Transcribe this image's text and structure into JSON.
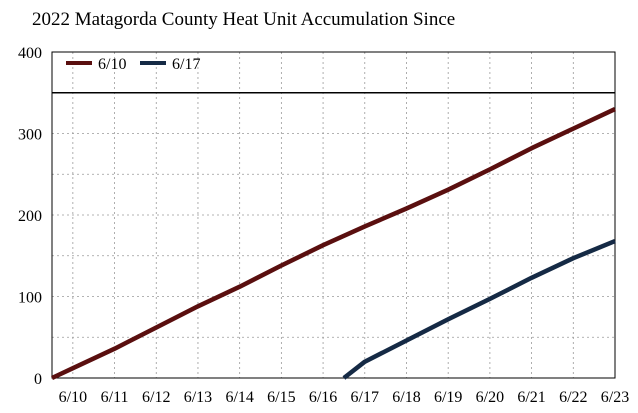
{
  "chart_data": {
    "type": "line",
    "title": "2022 Matagorda County Heat Unit Accumulation Since",
    "xlabel": "",
    "ylabel": "",
    "x": [
      "6/10",
      "6/11",
      "6/12",
      "6/13",
      "6/14",
      "6/15",
      "6/16",
      "6/17",
      "6/18",
      "6/19",
      "6/20",
      "6/21",
      "6/22",
      "6/23"
    ],
    "xlim": [
      -0.5,
      13
    ],
    "ylim": [
      0,
      400
    ],
    "yticks": [
      0,
      100,
      200,
      300,
      400
    ],
    "grid": true,
    "legend": "top-left",
    "reference_line": {
      "y": 350,
      "color": "#000000"
    },
    "series": [
      {
        "name": "6/10",
        "color": "#5a0f0f",
        "points": [
          [
            -0.5,
            0
          ],
          [
            0,
            12
          ],
          [
            1,
            36
          ],
          [
            2,
            62
          ],
          [
            3,
            88
          ],
          [
            4,
            112
          ],
          [
            5,
            138
          ],
          [
            6,
            163
          ],
          [
            7,
            186
          ],
          [
            8,
            208
          ],
          [
            9,
            231
          ],
          [
            10,
            256
          ],
          [
            11,
            282
          ],
          [
            12,
            306
          ],
          [
            13,
            330
          ]
        ]
      },
      {
        "name": "6/17",
        "color": "#152a45",
        "points": [
          [
            6.5,
            0
          ],
          [
            7,
            20
          ],
          [
            8,
            46
          ],
          [
            9,
            72
          ],
          [
            10,
            97
          ],
          [
            11,
            123
          ],
          [
            12,
            147
          ],
          [
            13,
            168
          ]
        ]
      }
    ]
  }
}
